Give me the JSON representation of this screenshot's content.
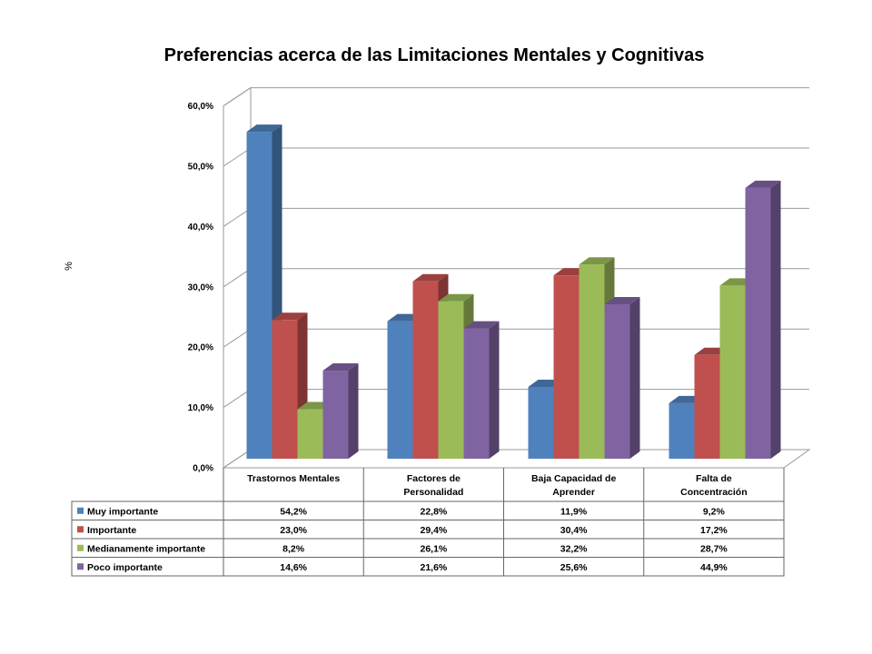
{
  "chart_data": {
    "type": "bar",
    "title": "Preferencias acerca de las Limitaciones Mentales y Cognitivas",
    "ylabel": "%",
    "xlabel": "",
    "ylim": [
      0,
      60
    ],
    "grid": true,
    "style": "3d-clustered-bar-with-data-table",
    "yticks": [
      "0,0%",
      "10,0%",
      "20,0%",
      "30,0%",
      "40,0%",
      "50,0%",
      "60,0%"
    ],
    "categories": [
      [
        "Trastornos Mentales"
      ],
      [
        "Factores de",
        "Personalidad"
      ],
      [
        "Baja Capacidad de",
        "Aprender"
      ],
      [
        "Falta de",
        "Concentración"
      ]
    ],
    "series": [
      {
        "name": "Muy importante",
        "color": "#4F81BD",
        "values": [
          54.2,
          22.8,
          11.9,
          9.2
        ],
        "labels": [
          "54,2%",
          "22,8%",
          "11,9%",
          "9,2%"
        ]
      },
      {
        "name": "Importante",
        "color": "#C0504D",
        "values": [
          23.0,
          29.4,
          30.4,
          17.2
        ],
        "labels": [
          "23,0%",
          "29,4%",
          "30,4%",
          "17,2%"
        ]
      },
      {
        "name": "Medianamente importante",
        "color": "#9BBB59",
        "values": [
          8.2,
          26.1,
          32.2,
          28.7
        ],
        "labels": [
          "8,2%",
          "26,1%",
          "32,2%",
          "28,7%"
        ]
      },
      {
        "name": "Poco importante",
        "color": "#8064A2",
        "values": [
          14.6,
          21.6,
          25.6,
          44.9
        ],
        "labels": [
          "14,6%",
          "21,6%",
          "25,6%",
          "44,9%"
        ]
      }
    ]
  }
}
